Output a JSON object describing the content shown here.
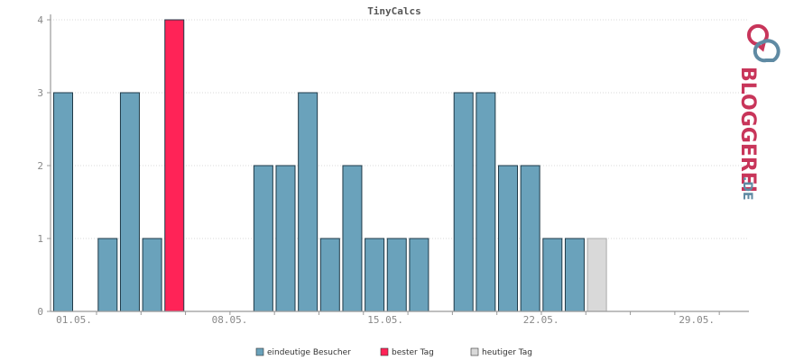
{
  "chart_data": {
    "type": "bar",
    "title": "TinyCalcs",
    "xlabel": "",
    "ylabel": "",
    "ylim": [
      0,
      4
    ],
    "yticks": [
      0,
      1,
      2,
      3,
      4
    ],
    "grid": true,
    "legend_position": "bottom-center",
    "days": [
      1,
      2,
      3,
      4,
      5,
      6,
      7,
      8,
      9,
      10,
      11,
      12,
      13,
      14,
      15,
      16,
      17,
      18,
      19,
      20,
      21,
      22,
      23,
      24,
      25,
      26,
      27,
      28,
      29,
      30,
      31
    ],
    "x_tick_labels": [
      {
        "day": 1,
        "label": "01.05."
      },
      {
        "day": 8,
        "label": "08.05."
      },
      {
        "day": 15,
        "label": "15.05."
      },
      {
        "day": 22,
        "label": "22.05."
      },
      {
        "day": 29,
        "label": "29.05."
      }
    ],
    "series": [
      {
        "name": "eindeutige Besucher",
        "color": "#6aa2bb",
        "values": [
          3,
          0,
          1,
          3,
          1,
          4,
          0,
          0,
          0,
          2,
          2,
          3,
          1,
          2,
          1,
          1,
          1,
          0,
          3,
          3,
          2,
          2,
          1,
          1,
          1,
          0,
          0,
          0,
          0,
          0,
          0
        ]
      }
    ],
    "best_day": {
      "name": "bester Tag",
      "day": 6,
      "color": "#ff2357"
    },
    "today": {
      "name": "heutiger Tag",
      "day": 25,
      "color": "#d9d9d9"
    }
  },
  "logo": {
    "text": "BLOGGEREI",
    "suffix": ".DE",
    "colors": {
      "primary": "#c8355a",
      "secondary": "#5f8aa3"
    }
  }
}
